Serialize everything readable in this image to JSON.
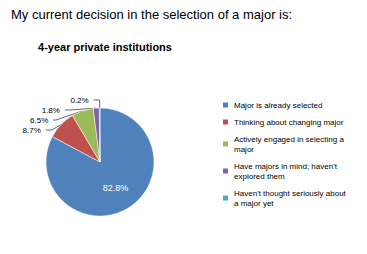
{
  "chart_data": {
    "type": "pie",
    "subtitle": "My current decision in the selection of a major is:",
    "title": "4-year private institutions",
    "categories": [
      "Major is already selected",
      "Thinking about changing major",
      "Actively engaged in selecting a major",
      "Have majors in mind; haven't explored them",
      "Haven't thought seriously about a major yet"
    ],
    "values": [
      82.8,
      8.7,
      6.5,
      1.8,
      0.2
    ],
    "value_labels": [
      "82.8%",
      "8.7%",
      "6.5%",
      "1.8%",
      "0.2%"
    ],
    "colors": [
      "#4f81bd",
      "#c0504d",
      "#9bbb59",
      "#8064a2",
      "#4bacc6"
    ],
    "data_labels": true,
    "legend": "right"
  }
}
